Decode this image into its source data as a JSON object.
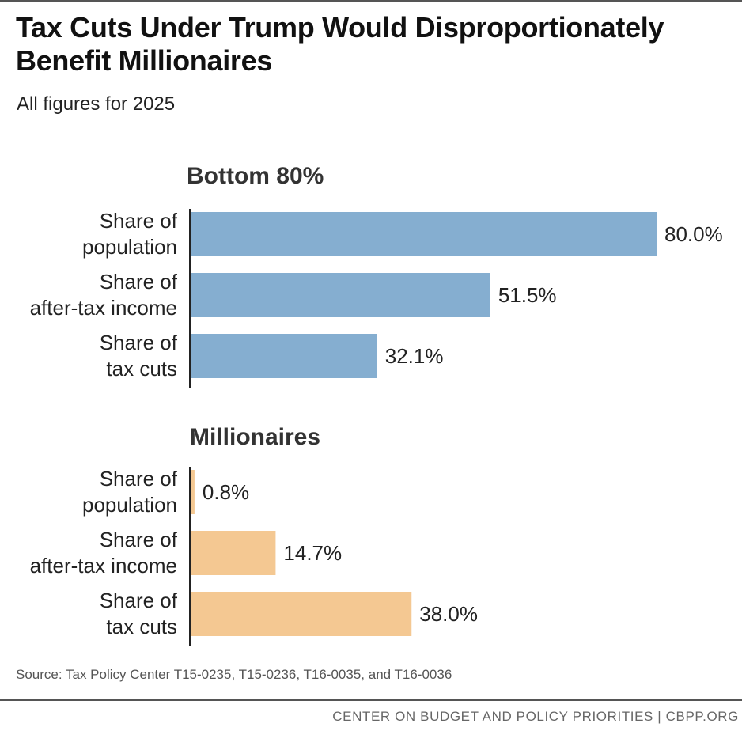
{
  "header": {
    "title": "Tax Cuts Under Trump Would Disproportionately Benefit Millionaires",
    "subtitle": "All figures for 2025"
  },
  "source": "Source: Tax Policy Center T15-0235, T15-0236, T16-0035, and T16-0036",
  "footer": "CENTER ON BUDGET AND POLICY PRIORITIES | CBPP.ORG",
  "chart_data": {
    "type": "bar",
    "orientation": "horizontal",
    "xlim": [
      0,
      80
    ],
    "unit": "%",
    "groups": [
      {
        "name": "Bottom 80%",
        "color": "#85aed0",
        "bars": [
          {
            "label": [
              "Share of",
              "population"
            ],
            "value": 80.0,
            "value_label": "80.0%"
          },
          {
            "label": [
              "Share of",
              "after-tax income"
            ],
            "value": 51.5,
            "value_label": "51.5%"
          },
          {
            "label": [
              "Share of",
              "tax cuts"
            ],
            "value": 32.1,
            "value_label": "32.1%"
          }
        ]
      },
      {
        "name": "Millionaires",
        "color": "#f4c892",
        "bars": [
          {
            "label": [
              "Share of",
              "population"
            ],
            "value": 0.8,
            "value_label": "0.8%"
          },
          {
            "label": [
              "Share of",
              "after-tax income"
            ],
            "value": 14.7,
            "value_label": "14.7%"
          },
          {
            "label": [
              "Share of",
              "tax cuts"
            ],
            "value": 38.0,
            "value_label": "38.0%"
          }
        ]
      }
    ]
  }
}
